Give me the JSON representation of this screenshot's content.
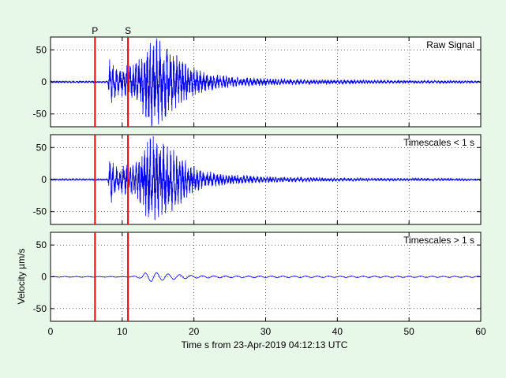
{
  "figure": {
    "background": "#e8f8e8",
    "axes_background": "#ffffff",
    "trace_color": "#0000ff",
    "marker_color": "#ff0000"
  },
  "chart_data": [
    {
      "type": "line",
      "panel_title": "Raw Signal",
      "ylim": [
        -70,
        70
      ],
      "yticks": [
        "50",
        "0",
        "-50"
      ],
      "xlim": [
        0,
        60
      ],
      "grid": true,
      "series": [
        {
          "x": [
            0,
            8,
            8.3,
            8.8,
            9.4,
            10.2,
            11.2,
            12.3,
            13.0,
            13.6,
            14.4,
            15.1,
            15.8,
            16.5,
            17.2,
            18.0,
            18.8,
            19.7,
            20.6,
            22.0,
            24.0,
            26.0,
            28.0,
            30.0,
            33.0,
            36.0,
            40.0,
            45.0,
            50.0,
            55.0,
            60.0
          ],
          "envelope": [
            1,
            1,
            38,
            22,
            18,
            20,
            24,
            32,
            45,
            55,
            62,
            60,
            52,
            45,
            42,
            35,
            28,
            22,
            17,
            12,
            9,
            7,
            6,
            5,
            4,
            3.5,
            3,
            2.5,
            2,
            2,
            1.5
          ]
        }
      ]
    },
    {
      "type": "line",
      "panel_title": "Timescales < 1 s",
      "ylim": [
        -70,
        70
      ],
      "yticks": [
        "50",
        "0",
        "-50"
      ],
      "xlim": [
        0,
        60
      ],
      "grid": true,
      "series": [
        {
          "x": [
            0,
            8,
            8.3,
            8.8,
            9.4,
            10.2,
            11.2,
            12.3,
            13.0,
            13.6,
            14.4,
            15.1,
            15.8,
            16.5,
            17.2,
            18.0,
            18.8,
            19.7,
            20.6,
            22.0,
            24.0,
            26.0,
            28.0,
            30.0,
            33.0,
            36.0,
            40.0,
            45.0,
            50.0,
            55.0,
            60.0
          ],
          "envelope": [
            1,
            1,
            37,
            21,
            17,
            19,
            23,
            31,
            44,
            54,
            61,
            59,
            51,
            44,
            41,
            34,
            27,
            21,
            16,
            11,
            8,
            6.5,
            5.5,
            4.5,
            3.5,
            3,
            2.5,
            2,
            1.8,
            1.8,
            1.2
          ]
        }
      ]
    },
    {
      "type": "line",
      "panel_title": "Timescales > 1 s",
      "ylabel": "Velocity µm/s",
      "ylim": [
        -70,
        70
      ],
      "yticks": [
        "50",
        "0",
        "-50"
      ],
      "xlim": [
        0,
        60
      ],
      "xticks": [
        "0",
        "10",
        "20",
        "30",
        "40",
        "50",
        "60"
      ],
      "xlabel": "Time s from 23-Apr-2019 04:12:13 UTC",
      "grid": true,
      "series": [
        {
          "x": [
            0,
            11,
            12.5,
            13.2,
            14.2,
            15.0,
            16.0,
            17.0,
            18.5,
            20.0,
            25.0,
            30.0,
            40.0,
            50.0,
            60.0
          ],
          "envelope": [
            0.5,
            0.5,
            2,
            6,
            7.5,
            6,
            5,
            4,
            3,
            2,
            1.2,
            1.2,
            1.0,
            1.0,
            0.8
          ]
        }
      ]
    }
  ],
  "phase_markers": [
    {
      "label": "P",
      "time": 6.2
    },
    {
      "label": "S",
      "time": 10.8
    }
  ]
}
